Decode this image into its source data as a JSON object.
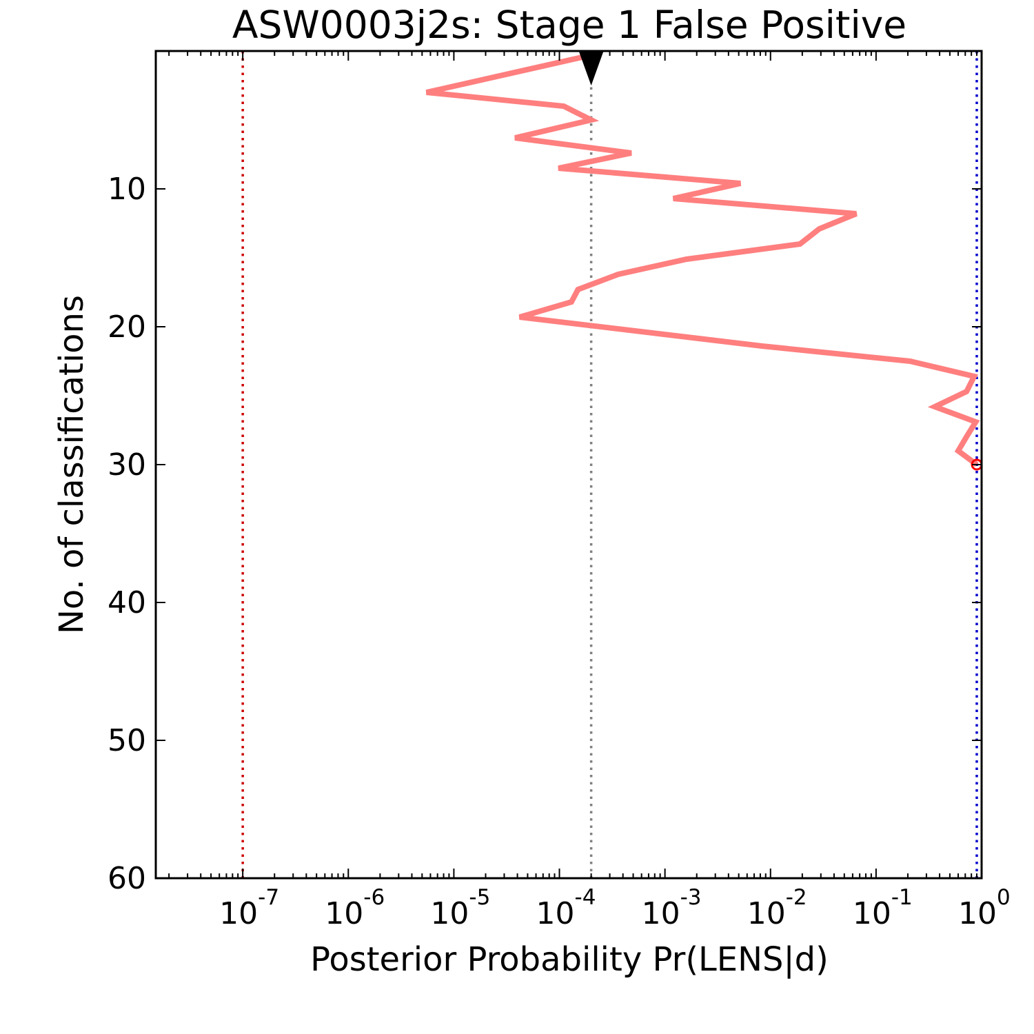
{
  "chart_data": {
    "type": "line",
    "title": "ASW0003j2s: Stage 1 False Positive",
    "xlabel": "Posterior Probability Pr(LENS|d)",
    "ylabel": "No. of classifications",
    "x_scale": "log",
    "xlim": [
      1.5e-08,
      1.0
    ],
    "ylim": [
      60,
      0
    ],
    "x_ticks": [
      {
        "value": 1e-07,
        "base": "10",
        "exp": "-7"
      },
      {
        "value": 1e-06,
        "base": "10",
        "exp": "-6"
      },
      {
        "value": 1e-05,
        "base": "10",
        "exp": "-5"
      },
      {
        "value": 0.0001,
        "base": "10",
        "exp": "-4"
      },
      {
        "value": 0.001,
        "base": "10",
        "exp": "-3"
      },
      {
        "value": 0.01,
        "base": "10",
        "exp": "-2"
      },
      {
        "value": 0.1,
        "base": "10",
        "exp": "-1"
      },
      {
        "value": 1,
        "base": "10",
        "exp": "0"
      }
    ],
    "y_ticks": [
      10,
      20,
      30,
      40,
      50,
      60
    ],
    "series": [
      {
        "color": "#ff7f7f",
        "points": [
          [
            0.0002,
            0.3
          ],
          [
            5.5e-06,
            3.0
          ],
          [
            0.00011,
            4.0
          ],
          [
            0.0002,
            5.0
          ],
          [
            3.8e-05,
            6.3
          ],
          [
            0.00048,
            7.4
          ],
          [
            9.8e-05,
            8.5
          ],
          [
            0.0052,
            9.6
          ],
          [
            0.0012,
            10.7
          ],
          [
            0.065,
            11.8
          ],
          [
            0.029,
            12.9
          ],
          [
            0.019,
            14.0
          ],
          [
            0.0016,
            15.1
          ],
          [
            0.00036,
            16.2
          ],
          [
            0.00015,
            17.3
          ],
          [
            0.00013,
            18.2
          ],
          [
            4.2e-05,
            19.3
          ],
          [
            0.0083,
            21.4
          ],
          [
            0.21,
            22.5
          ],
          [
            0.85,
            23.6
          ],
          [
            0.72,
            24.7
          ],
          [
            0.36,
            25.8
          ],
          [
            0.88,
            26.9
          ],
          [
            0.73,
            27.9
          ],
          [
            0.6,
            29.0
          ],
          [
            0.9,
            30.0
          ]
        ]
      }
    ],
    "reference_lines": [
      {
        "x": 1e-07,
        "color": "#cc0000",
        "style": "dotted"
      },
      {
        "x": 0.0002,
        "color": "#808080",
        "style": "dotted"
      },
      {
        "x": 0.9,
        "color": "#0000cc",
        "style": "dotted"
      }
    ],
    "start_marker": {
      "x": 0.0002,
      "y": 0,
      "shape": "triangle-down",
      "color": "#000000"
    },
    "end_marker": {
      "x": 0.9,
      "y": 30,
      "shape": "circle",
      "color": "#ff0000"
    }
  }
}
